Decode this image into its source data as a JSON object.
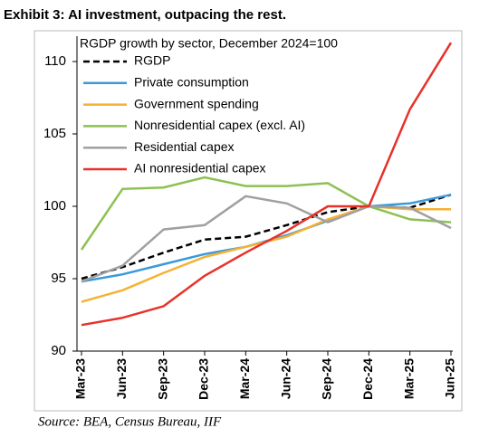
{
  "chart_data": {
    "type": "line",
    "title": "Exhibit 3: AI investment, outpacing the rest.",
    "subtitle": "RGDP growth by sector, December 2024=100",
    "source": "Source: BEA, Census Bureau, IIF",
    "categories": [
      "Mar-23",
      "Jun-23",
      "Sep-23",
      "Dec-23",
      "Mar-24",
      "Jun-24",
      "Sep-24",
      "Dec-24",
      "Mar-25",
      "Jun-25"
    ],
    "ylim": [
      90,
      111.75
    ],
    "yticks": [
      90,
      95,
      100,
      105,
      110
    ],
    "series": [
      {
        "name": "RGDP",
        "color": "#000000",
        "dashed": true,
        "values": [
          95.0,
          95.8,
          96.8,
          97.7,
          97.9,
          98.7,
          99.6,
          100.0,
          99.9,
          100.8
        ]
      },
      {
        "name": "Private consumption",
        "color": "#3a9ad9",
        "values": [
          94.8,
          95.3,
          96.0,
          96.7,
          97.2,
          98.0,
          99.0,
          100.0,
          100.2,
          100.8
        ]
      },
      {
        "name": "Government spending",
        "color": "#f5b233",
        "values": [
          93.4,
          94.2,
          95.4,
          96.5,
          97.2,
          97.9,
          99.1,
          100.0,
          99.8,
          99.8
        ]
      },
      {
        "name": "Nonresidential capex (excl. AI)",
        "color": "#8cc152",
        "values": [
          97.0,
          101.2,
          101.3,
          102.0,
          101.4,
          101.4,
          101.6,
          100.0,
          99.1,
          98.9
        ]
      },
      {
        "name": "Residential capex",
        "color": "#a0a0a0",
        "values": [
          94.8,
          95.9,
          98.4,
          98.7,
          100.7,
          100.2,
          98.9,
          100.0,
          99.9,
          98.5
        ]
      },
      {
        "name": "AI nonresidential capex",
        "color": "#e8312a",
        "values": [
          91.8,
          92.3,
          93.1,
          95.2,
          96.8,
          98.3,
          100.0,
          100.0,
          106.7,
          111.3
        ]
      }
    ]
  }
}
